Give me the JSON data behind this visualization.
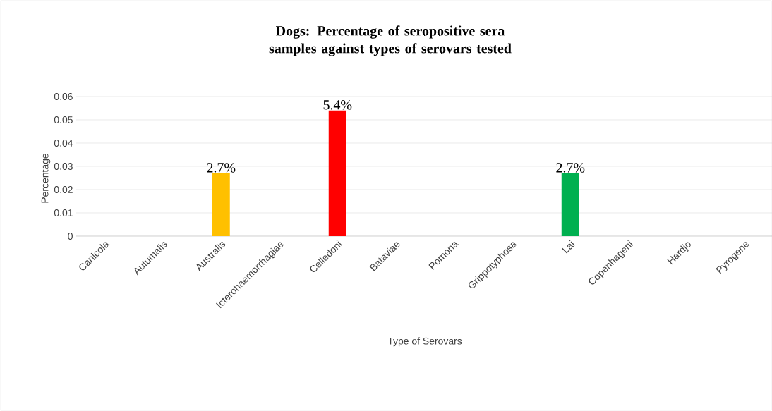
{
  "chart_data": {
    "type": "bar",
    "title": "Dogs: Percentage of seropositive sera samples against types of serovars tested",
    "xlabel": "Type of Serovars",
    "ylabel": "Percentage",
    "categories": [
      "Canicola",
      "Autumalis",
      "Australis",
      "Icterohaemorrhagiae",
      "Celledoni",
      "Bataviae",
      "Pomona",
      "Grippotyphosa",
      "Lai",
      "Copenhageni",
      "Hardjo",
      "Pyrogene"
    ],
    "values": [
      0,
      0,
      0.027,
      0,
      0.054,
      0,
      0,
      0,
      0.027,
      0,
      0,
      0
    ],
    "value_labels": [
      null,
      null,
      "2.7%",
      null,
      "5.4%",
      null,
      null,
      null,
      "2.7%",
      null,
      null,
      null
    ],
    "colors": [
      "#4472c4",
      "#4472c4",
      "#ffc000",
      "#4472c4",
      "#ff0000",
      "#4472c4",
      "#4472c4",
      "#4472c4",
      "#00b050",
      "#4472c4",
      "#4472c4",
      "#4472c4"
    ],
    "ylim": [
      0,
      0.06
    ],
    "yticks": [
      0,
      0.01,
      0.02,
      0.03,
      0.04,
      0.05,
      0.06
    ],
    "grid": "y"
  }
}
